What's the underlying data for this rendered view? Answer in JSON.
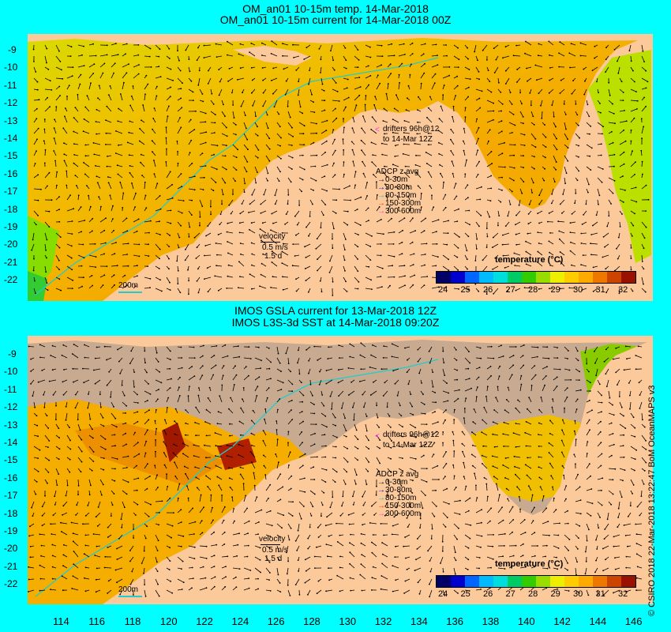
{
  "panels": [
    {
      "title_line1": "OM_an01 10-15m temp. 14-Mar-2018",
      "title_line2": "OM_an01 10-15m current for 14-Mar-2018 00Z",
      "drifters_line1": "drifters 96h@12",
      "drifters_line2": "to 14-Mar 12Z",
      "adcp_title": "ADCP z avg",
      "adcp_items": [
        "0-30m",
        "30-80m",
        "80-150m",
        "150-300m",
        "300-600m"
      ],
      "velocity_label": "velocity",
      "velocity_speed": "0.5 m/s",
      "velocity_time": "1.5 d",
      "scale_label": "200m",
      "colorbar_title": "temperature (°C)",
      "colorbar_ticks": [
        "24",
        "25",
        "26",
        "27",
        "28",
        "29",
        "30",
        "31",
        "32"
      ]
    },
    {
      "title_line1": "IMOS GSLA current for 13-Mar-2018 12Z",
      "title_line2": "IMOS L3S-3d SST at 14-Mar-2018 09:20Z",
      "drifters_line1": "drifters 96h@12",
      "drifters_line2": "to 14-Mar 12Z",
      "adcp_title": "ADCP z avg",
      "adcp_items": [
        "0-30m",
        "30-80m",
        "80-150m",
        "150-300m",
        "300-600m"
      ],
      "velocity_label": "velocity",
      "velocity_speed": "0.5 m/s",
      "velocity_time": "1.5 d",
      "scale_label": "200m",
      "colorbar_title": "temperature (°C)",
      "colorbar_ticks": [
        "24",
        "25",
        "26",
        "27",
        "28",
        "29",
        "30",
        "31",
        "32"
      ]
    }
  ],
  "lat_ticks": [
    "-9",
    "-10",
    "-11",
    "-12",
    "-13",
    "-14",
    "-15",
    "-16",
    "-17",
    "-18",
    "-19",
    "-20",
    "-21",
    "-22"
  ],
  "lon_ticks": [
    "114",
    "116",
    "118",
    "120",
    "122",
    "124",
    "126",
    "128",
    "130",
    "132",
    "134",
    "136",
    "138",
    "140",
    "142",
    "144",
    "146"
  ],
  "credit": "© CSIRO 2018  22-Mar-2018 13:22:47 BoM OceanMAPS v3",
  "adcp_colors": [
    "#000000",
    "#0000ff",
    "#00c8c8",
    "#ff3300",
    "#ff33ff"
  ],
  "colorbar_colors": [
    "#000066",
    "#0000cc",
    "#0066ff",
    "#00bbff",
    "#00dddd",
    "#00cc66",
    "#33cc00",
    "#99dd00",
    "#eeee00",
    "#ffcc00",
    "#ffaa00",
    "#ee7700",
    "#cc4400",
    "#991100"
  ],
  "colors": {
    "background": "#00ffff",
    "land": "#fcc99a",
    "sea": "#f5b400",
    "missing": "#c8aa90"
  }
}
